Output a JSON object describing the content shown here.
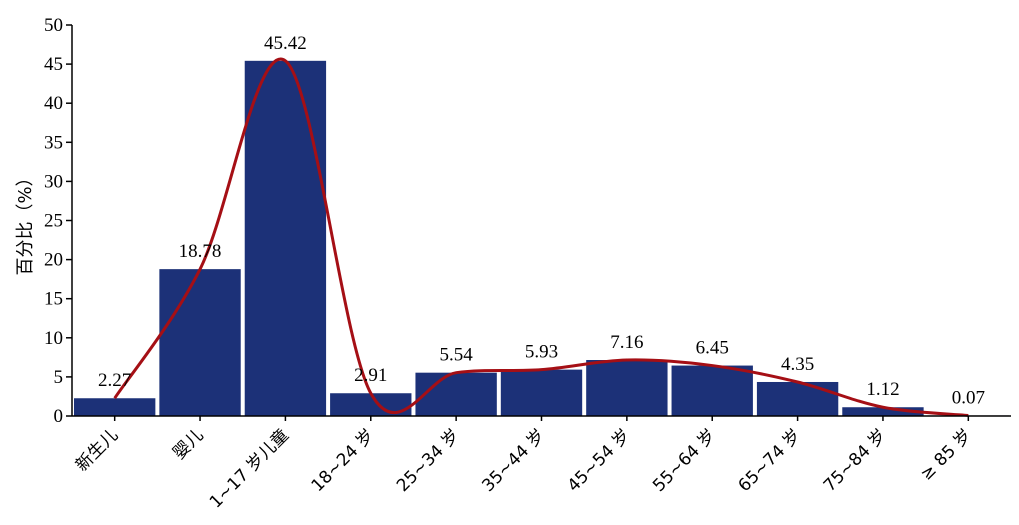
{
  "chart_data": {
    "type": "bar",
    "title": "",
    "xlabel": "",
    "ylabel": "百分比（%）",
    "ylim": [
      0,
      50
    ],
    "yticks": [
      0,
      5,
      10,
      15,
      20,
      25,
      30,
      35,
      40,
      45,
      50
    ],
    "categories": [
      "新生儿",
      "婴儿",
      "1~17 岁儿童",
      "18~24 岁",
      "25~34 岁",
      "35~44 岁",
      "45~54 岁",
      "55~64 岁",
      "65~74 岁",
      "75~84 岁",
      "≥ 85 岁"
    ],
    "values": [
      2.27,
      18.78,
      45.42,
      2.91,
      5.54,
      5.93,
      7.16,
      6.45,
      4.35,
      1.12,
      0.07
    ],
    "value_labels": [
      "2.27",
      "18.78",
      "45.42",
      "2.91",
      "5.54",
      "5.93",
      "7.16",
      "6.45",
      "4.35",
      "1.12",
      "0.07"
    ],
    "trend_line": true,
    "grid": false,
    "colors": {
      "bar": "#1c3178",
      "trend": "#a50f15",
      "axis": "#000000"
    }
  }
}
